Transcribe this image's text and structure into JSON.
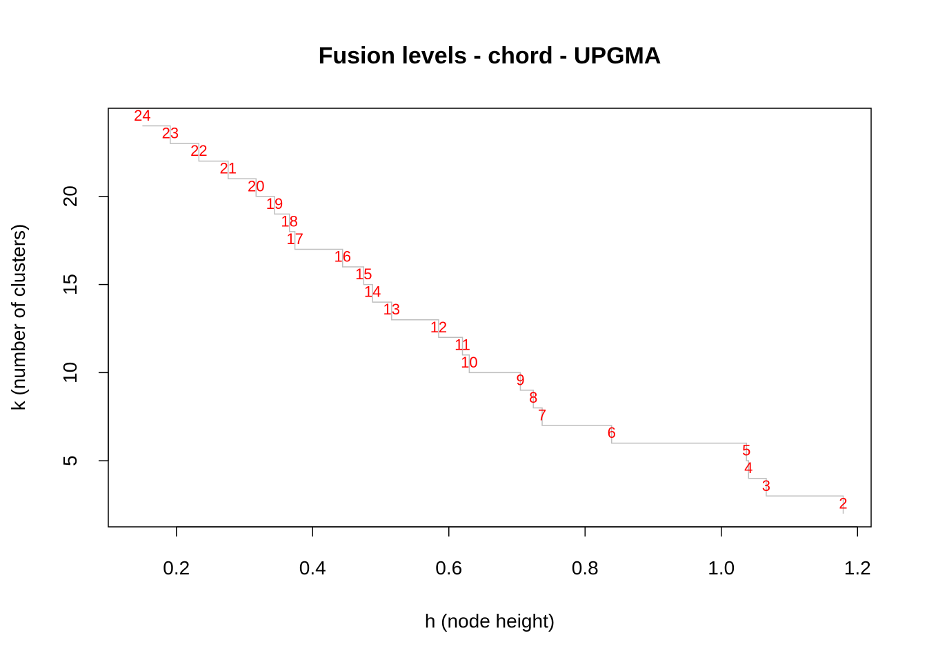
{
  "chart_data": {
    "type": "line",
    "title": "Fusion levels - chord - UPGMA",
    "xlabel": "h (node height)",
    "ylabel": "k (number of clusters)",
    "xlim": [
      0.1,
      1.22
    ],
    "ylim": [
      1.25,
      25.0
    ],
    "x_ticks": [
      0.2,
      0.4,
      0.6,
      0.8,
      1.0,
      1.2
    ],
    "x_tick_labels": [
      "0.2",
      "0.4",
      "0.6",
      "0.8",
      "1.0",
      "1.2"
    ],
    "y_ticks": [
      5,
      10,
      15,
      20
    ],
    "y_tick_labels": [
      "5",
      "10",
      "15",
      "20"
    ],
    "grid": false,
    "line_color": "#bebebe",
    "label_color": "#ff0000",
    "points": [
      {
        "h": 0.15,
        "k": 24,
        "label": "24"
      },
      {
        "h": 0.191,
        "k": 23,
        "label": "23"
      },
      {
        "h": 0.233,
        "k": 22,
        "label": "22"
      },
      {
        "h": 0.276,
        "k": 21,
        "label": "21"
      },
      {
        "h": 0.317,
        "k": 20,
        "label": "20"
      },
      {
        "h": 0.344,
        "k": 19,
        "label": "19"
      },
      {
        "h": 0.366,
        "k": 18,
        "label": "18"
      },
      {
        "h": 0.374,
        "k": 17,
        "label": "17"
      },
      {
        "h": 0.444,
        "k": 16,
        "label": "16"
      },
      {
        "h": 0.475,
        "k": 15,
        "label": "15"
      },
      {
        "h": 0.488,
        "k": 14,
        "label": "14"
      },
      {
        "h": 0.516,
        "k": 13,
        "label": "13"
      },
      {
        "h": 0.585,
        "k": 12,
        "label": "12"
      },
      {
        "h": 0.62,
        "k": 11,
        "label": "11"
      },
      {
        "h": 0.63,
        "k": 10,
        "label": "10"
      },
      {
        "h": 0.705,
        "k": 9,
        "label": "9"
      },
      {
        "h": 0.724,
        "k": 8,
        "label": "8"
      },
      {
        "h": 0.737,
        "k": 7,
        "label": "7"
      },
      {
        "h": 0.839,
        "k": 6,
        "label": "6"
      },
      {
        "h": 1.037,
        "k": 5,
        "label": "5"
      },
      {
        "h": 1.04,
        "k": 4,
        "label": "4"
      },
      {
        "h": 1.066,
        "k": 3,
        "label": "3"
      },
      {
        "h": 1.179,
        "k": 2,
        "label": "2"
      }
    ]
  }
}
